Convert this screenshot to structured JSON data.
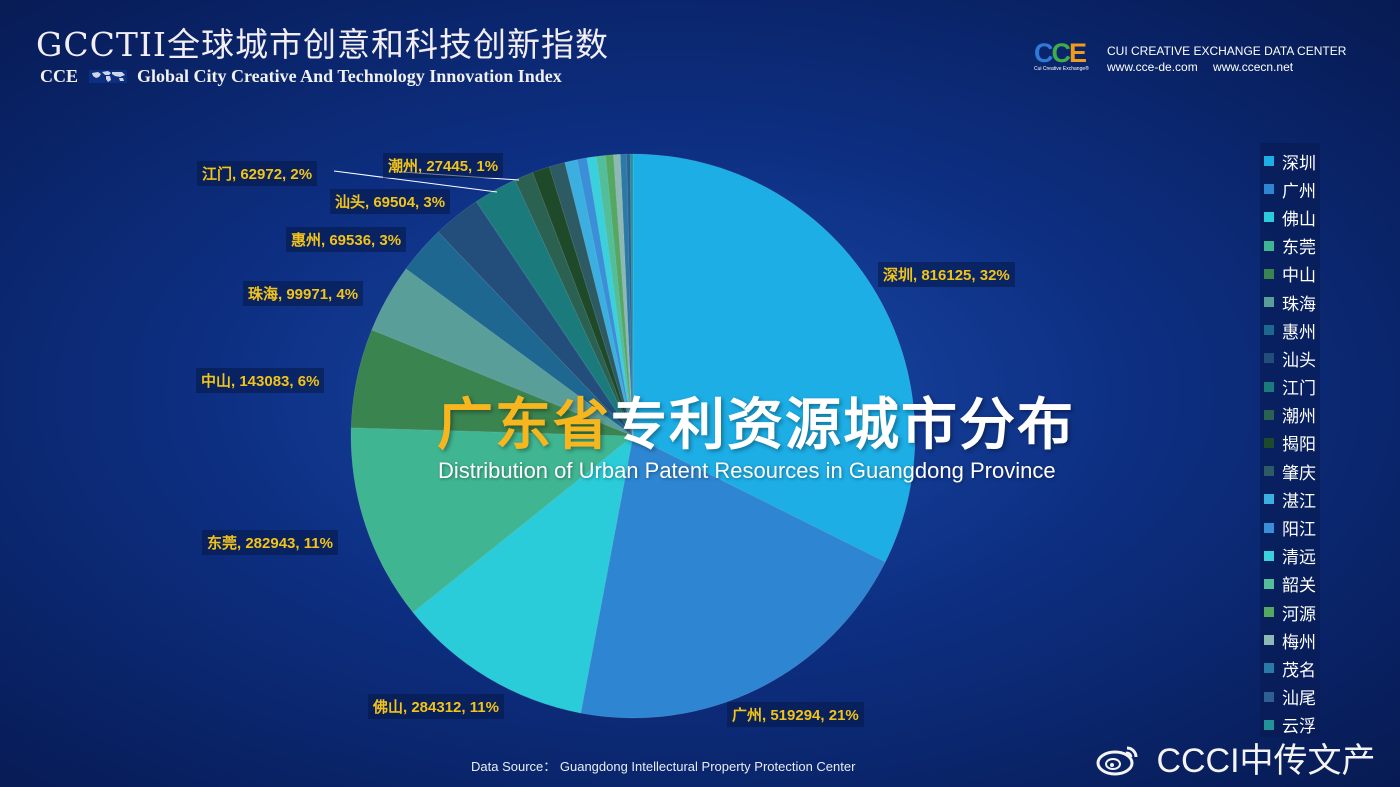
{
  "header": {
    "title_cn": "GCCTII全球城市创意和科技创新指数",
    "prefix": "CCE",
    "title_en": "Global City Creative And Technology Innovation Index"
  },
  "brand": {
    "logo_c1": "C",
    "logo_c2": "C",
    "logo_e": "E",
    "logo_sub": "Cui Creative Exchange®",
    "org": "CUI CREATIVE EXCHANGE DATA CENTER",
    "site1": "www.cce-de.com",
    "site2": "www.ccecn.net"
  },
  "overlay": {
    "title_cn_highlight": "广东省",
    "title_cn_rest": "专利资源城市分布",
    "title_en": "Distribution of Urban Patent Resources in Guangdong Province"
  },
  "source": "Data Source：  Guangdong Intellectural Property Protection Center",
  "watermark": "CCCI中传文产",
  "chart_data": {
    "type": "pie",
    "title": "广东省专利资源城市分布",
    "subtitle": "Distribution of Urban Patent Resources in Guangdong Province",
    "legend_position": "right",
    "slices": [
      {
        "name": "深圳",
        "value": 816125,
        "label": "深圳, 816125, 32%",
        "color": "#1daee6"
      },
      {
        "name": "广州",
        "value": 519294,
        "label": "广州, 519294, 21%",
        "color": "#2e86d2"
      },
      {
        "name": "佛山",
        "value": 284312,
        "label": "佛山, 284312, 11%",
        "color": "#29ccd8"
      },
      {
        "name": "东莞",
        "value": 282943,
        "label": "东莞, 282943, 11%",
        "color": "#3fb691"
      },
      {
        "name": "中山",
        "value": 143083,
        "label": "中山, 143083, 6%",
        "color": "#3a8450"
      },
      {
        "name": "珠海",
        "value": 99971,
        "label": "珠海, 99971, 4%",
        "color": "#5a9e9a"
      },
      {
        "name": "惠州",
        "value": 69536,
        "label": "惠州, 69536, 3%",
        "color": "#1e6790"
      },
      {
        "name": "汕头",
        "value": 69504,
        "label": "汕头, 69504, 3%",
        "color": "#234d7a"
      },
      {
        "name": "江门",
        "value": 62972,
        "label": "江门, 62972, 2%",
        "color": "#1b7a7c"
      },
      {
        "name": "潮州",
        "value": 27445,
        "label": "潮州, 27445, 1%",
        "color": "#2b6150"
      },
      {
        "name": "揭阳",
        "value": 25000,
        "color": "#1f4a2a"
      },
      {
        "name": "肇庆",
        "value": 23000,
        "color": "#2d5a63"
      },
      {
        "name": "湛江",
        "value": 18000,
        "color": "#3bb0e0"
      },
      {
        "name": "阳江",
        "value": 14000,
        "color": "#3b8fd8"
      },
      {
        "name": "清远",
        "value": 14000,
        "color": "#3ad0dc"
      },
      {
        "name": "韶关",
        "value": 13000,
        "color": "#52bf9a"
      },
      {
        "name": "河源",
        "value": 11000,
        "color": "#55a860"
      },
      {
        "name": "梅州",
        "value": 10000,
        "color": "#8db8b4"
      },
      {
        "name": "茂名",
        "value": 9000,
        "color": "#2a7aa8"
      },
      {
        "name": "汕尾",
        "value": 5000,
        "color": "#2e5f92"
      },
      {
        "name": "云浮",
        "value": 4000,
        "color": "#23939a"
      }
    ]
  }
}
